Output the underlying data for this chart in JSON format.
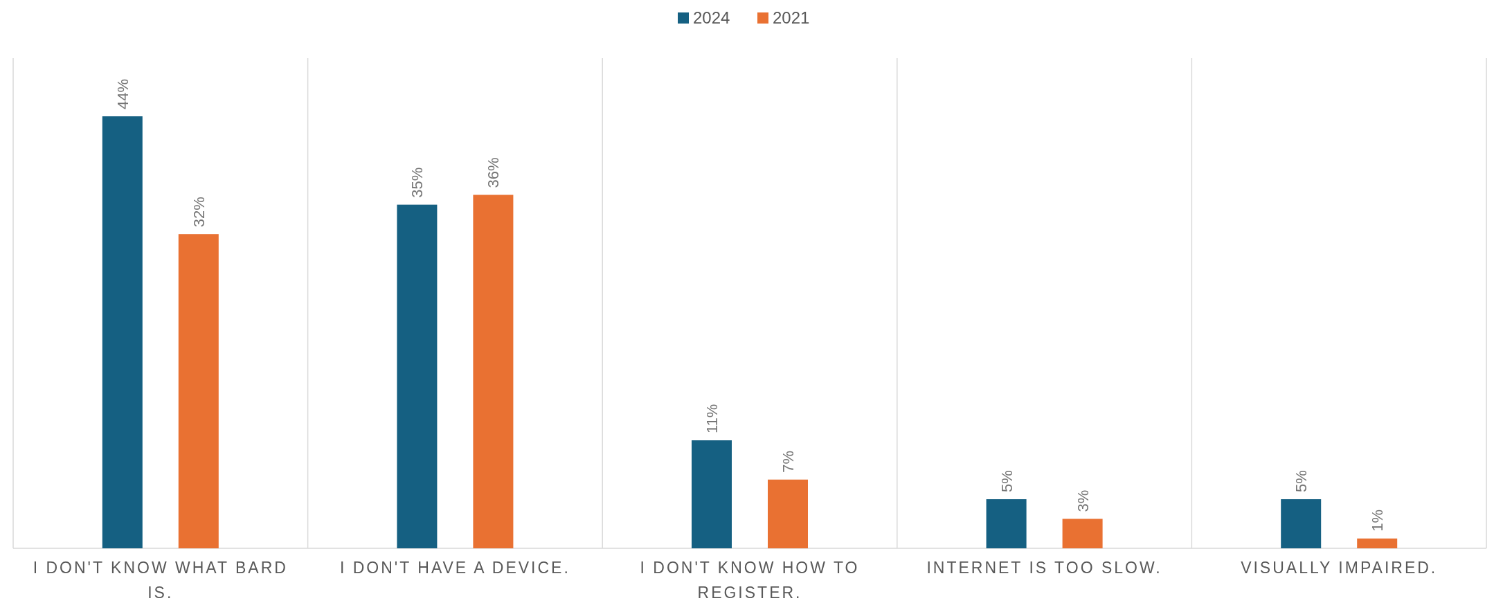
{
  "chart_data": {
    "type": "bar",
    "categories": [
      "I DON'T KNOW WHAT BARD IS.",
      "I DON'T HAVE A DEVICE.",
      "I DON'T KNOW HOW TO REGISTER.",
      "INTERNET IS TOO SLOW.",
      "VISUALLY IMPAIRED."
    ],
    "series": [
      {
        "name": "2024",
        "color": "#156082",
        "values": [
          44,
          35,
          11,
          5,
          5
        ],
        "value_labels": [
          "44%",
          "35%",
          "11%",
          "5%",
          "5%"
        ]
      },
      {
        "name": "2021",
        "color": "#e97132",
        "values": [
          32,
          36,
          7,
          3,
          1
        ],
        "value_labels": [
          "32%",
          "36%",
          "7%",
          "3%",
          "1%"
        ]
      }
    ],
    "grid": "x",
    "legend": "top"
  }
}
